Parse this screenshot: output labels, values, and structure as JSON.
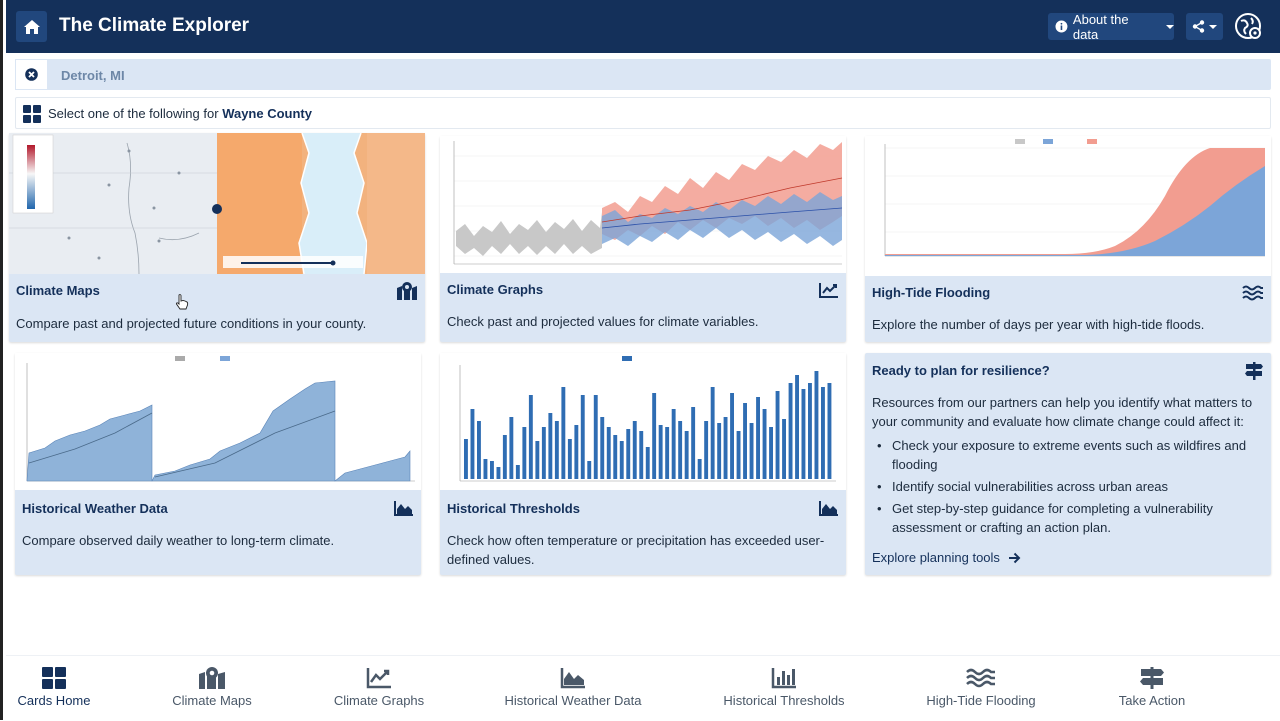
{
  "header": {
    "title": "The Climate Explorer",
    "about_label": "About the data"
  },
  "location": {
    "value": "Detroit, MI"
  },
  "select_prompt": {
    "prefix": "Select one of the following for",
    "county": "Wayne County"
  },
  "cards": [
    {
      "title": "Climate Maps",
      "icon": "map-icon",
      "description": "Compare past and projected future conditions in your county."
    },
    {
      "title": "Climate Graphs",
      "icon": "line-chart-icon",
      "description": "Check past and projected values for climate variables."
    },
    {
      "title": "High-Tide Flooding",
      "icon": "waves-icon",
      "description": "Explore the number of days per year with high-tide floods."
    },
    {
      "title": "Historical Weather Data",
      "icon": "area-chart-icon",
      "description": "Compare observed daily weather to long-term climate."
    },
    {
      "title": "Historical Thresholds",
      "icon": "area-chart-icon",
      "description": "Check how often temperature or precipitation has exceeded user-defined values."
    }
  ],
  "resilience": {
    "title": "Ready to plan for resilience?",
    "icon": "signpost-icon",
    "body": "Resources from our partners can help you identify what matters to your community and evaluate how climate change could affect it:",
    "bullets": [
      "Check your exposure to extreme events such as wildfires and flooding",
      "Identify social vulnerabilities across urban areas",
      "Get step-by-step guidance for completing a vulnerability assessment or crafting an action plan."
    ],
    "link_label": "Explore planning tools"
  },
  "bottom_nav": [
    {
      "label": "Cards Home",
      "icon": "grid-icon",
      "active": true
    },
    {
      "label": "Climate Maps",
      "icon": "map-icon"
    },
    {
      "label": "Climate Graphs",
      "icon": "line-chart-icon"
    },
    {
      "label": "Historical Weather Data",
      "icon": "area-chart-icon"
    },
    {
      "label": "Historical Thresholds",
      "icon": "bar-chart-icon"
    },
    {
      "label": "High-Tide Flooding",
      "icon": "waves-icon"
    },
    {
      "label": "Take Action",
      "icon": "signpost-icon"
    }
  ],
  "colors": {
    "header_bg": "#14305a",
    "card_bg": "#dbe6f4",
    "accent": "#14305a",
    "lower_emissions": "#7ca5d8",
    "higher_emissions": "#f29d90",
    "historical": "#c8c8c8"
  }
}
